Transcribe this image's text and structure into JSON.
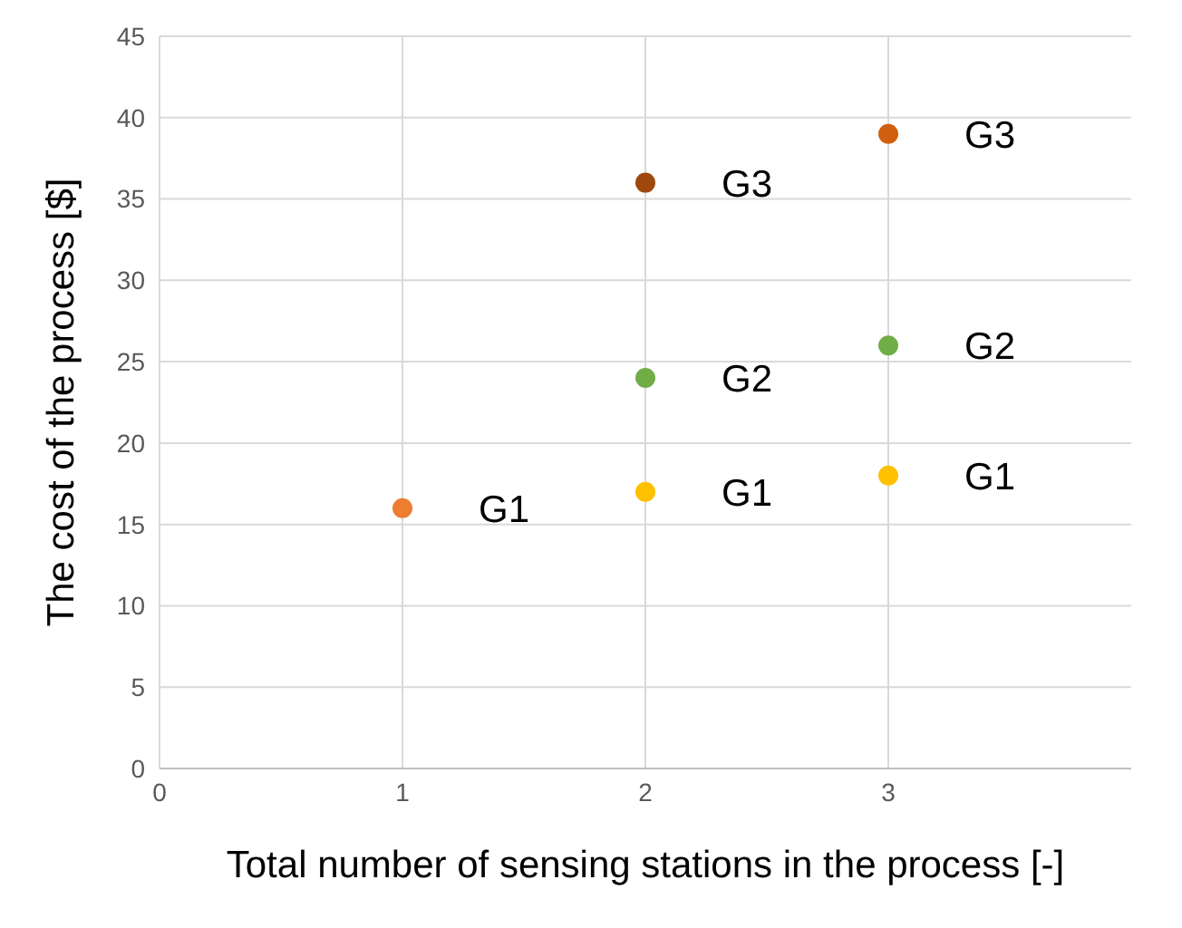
{
  "chart_data": {
    "type": "scatter",
    "xlabel": "Total number of sensing stations in the process [-]",
    "ylabel": "The cost of the process [$]",
    "x": [
      1,
      2,
      2,
      2,
      3,
      3,
      3
    ],
    "values": [
      16,
      17,
      24,
      36,
      18,
      26,
      39
    ],
    "colors": [
      "#ed7d31",
      "#ffc000",
      "#70ad47",
      "#9e480e",
      "#ffc000",
      "#70ad47",
      "#d0600f"
    ],
    "marker": "circle",
    "xlim": [
      0,
      4
    ],
    "xticks": [
      0,
      1,
      2,
      3
    ],
    "ylim": [
      0,
      45
    ],
    "yticks": [
      0,
      5,
      10,
      15,
      20,
      25,
      30,
      35,
      40,
      45
    ],
    "grid": true,
    "annotations": [
      {
        "text": "G1",
        "x": 1,
        "y": 16
      },
      {
        "text": "G1",
        "x": 2,
        "y": 17
      },
      {
        "text": "G2",
        "x": 2,
        "y": 24
      },
      {
        "text": "G3",
        "x": 2,
        "y": 36
      },
      {
        "text": "G1",
        "x": 3,
        "y": 18
      },
      {
        "text": "G2",
        "x": 3,
        "y": 26
      },
      {
        "text": "G3",
        "x": 3,
        "y": 39
      }
    ]
  }
}
